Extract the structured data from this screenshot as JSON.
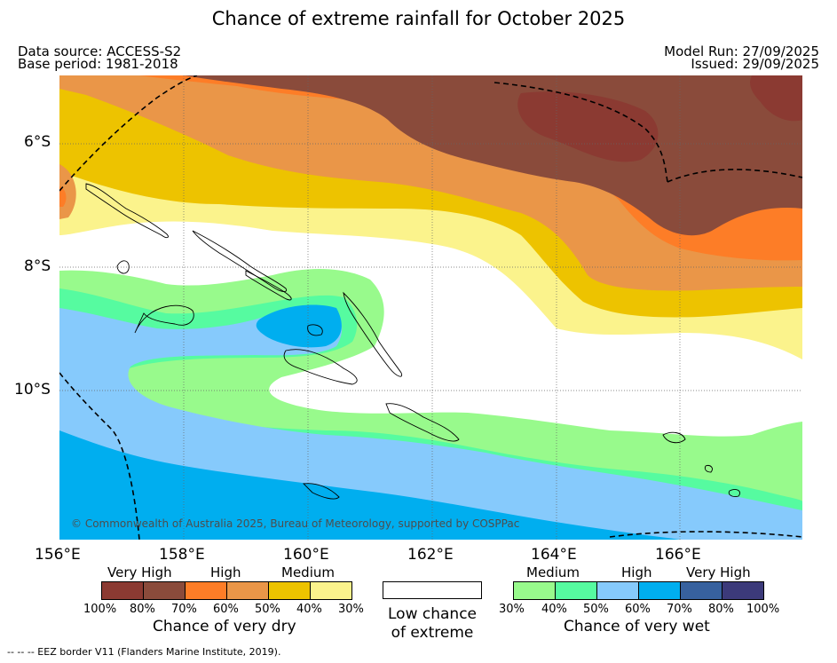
{
  "title": "Chance of extreme rainfall for October 2025",
  "meta": {
    "data_source": "Data source: ACCESS-S2",
    "base_period": "Base period: 1981-2018",
    "model_run": "Model Run: 27/09/2025",
    "issued": "Issued: 29/09/2025"
  },
  "map": {
    "copyright": "© Commonwealth of Australia 2025, Bureau of Meteorology, supported by COSPPac",
    "lat_labels": [
      "6°S",
      "8°S",
      "10°S"
    ],
    "lon_labels": [
      "156°E",
      "158°E",
      "160°E",
      "162°E",
      "164°E",
      "166°E"
    ]
  },
  "legend": {
    "dry": {
      "groups": [
        "Very High",
        "High",
        "Medium"
      ],
      "colors": [
        "#8b3a32",
        "#8a4b3b",
        "#fd7d27",
        "#ea9648",
        "#edc300",
        "#fbf38c"
      ],
      "percents": [
        "100%",
        "80%",
        "70%",
        "60%",
        "50%",
        "40%",
        "30%"
      ],
      "caption": "Chance of very dry"
    },
    "low": {
      "line1": "Low chance",
      "line2": "of extreme"
    },
    "wet": {
      "groups": [
        "Medium",
        "High",
        "Very High"
      ],
      "colors": [
        "#98fa8c",
        "#56fba0",
        "#86cafc",
        "#00aeef",
        "#37619e",
        "#3c3a7a"
      ],
      "percents": [
        "30%",
        "40%",
        "50%",
        "60%",
        "70%",
        "80%",
        "100%"
      ],
      "caption": "Chance of very wet"
    }
  },
  "footer": "-- -- -- EEZ border V11 (Flanders Marine Institute, 2019)."
}
